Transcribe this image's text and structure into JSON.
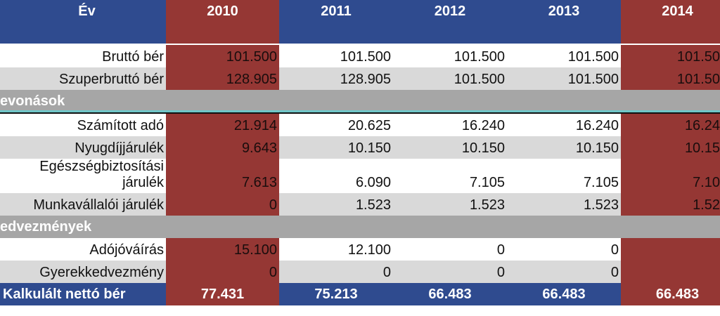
{
  "table": {
    "header": {
      "label": "Év",
      "years": [
        "2010",
        "2011",
        "2012",
        "2013",
        "2014"
      ]
    },
    "rows": [
      {
        "label": "Bruttó bér",
        "values": [
          "101.500",
          "101.500",
          "101.500",
          "101.500",
          "101.50"
        ]
      },
      {
        "label": "Szuperbruttó bér",
        "values": [
          "128.905",
          "128.905",
          "101.500",
          "101.500",
          "101.50"
        ]
      },
      {
        "section": "evonások"
      },
      {
        "label": "Számított adó",
        "values": [
          "21.914",
          "20.625",
          "16.240",
          "16.240",
          "16.24"
        ]
      },
      {
        "label": "Nyugdíjjárulék",
        "values": [
          "9.643",
          "10.150",
          "10.150",
          "10.150",
          "10.15"
        ]
      },
      {
        "label": "Egészségbiztosítási járulék",
        "values": [
          "7.613",
          "6.090",
          "7.105",
          "7.105",
          "7.10"
        ]
      },
      {
        "label": "Munkavállalói járulék",
        "values": [
          "0",
          "1.523",
          "1.523",
          "1.523",
          "1.52"
        ]
      },
      {
        "section": "edvezmények"
      },
      {
        "label": "Adójóváírás",
        "values": [
          "15.100",
          "12.100",
          "0",
          "0",
          null
        ]
      },
      {
        "label": "Gyerekkedvezmény",
        "values": [
          "0",
          "0",
          "0",
          "0",
          null
        ]
      }
    ],
    "footer": {
      "label": "Kalkulált nettó bér",
      "values": [
        "77.431",
        "75.213",
        "66.483",
        "66.483",
        "66.483"
      ]
    }
  }
}
